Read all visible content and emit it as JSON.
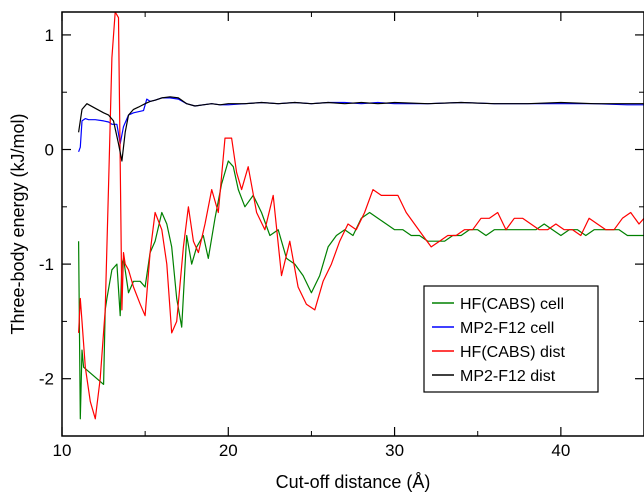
{
  "chart_data": {
    "type": "line",
    "xlabel": "Cut-off distance (Å)",
    "ylabel": "Three-body energy (kJ/mol)",
    "xlim": [
      10,
      45
    ],
    "ylim": [
      -2.5,
      1.2
    ],
    "xticks": [
      10,
      20,
      30,
      40
    ],
    "yticks": [
      1,
      0,
      -1,
      -2
    ],
    "xtick_labels": [
      "10",
      "20",
      "30",
      "40"
    ],
    "ytick_labels": [
      "1",
      "0",
      "-1",
      "-2"
    ],
    "grid": false,
    "legend_position": "bottom-right",
    "series": [
      {
        "name": "HF(CABS) cell",
        "color": "#008000",
        "x": [
          11.0,
          11.1,
          11.2,
          11.3,
          12.5,
          12.6,
          12.7,
          13.0,
          13.3,
          13.5,
          13.6,
          13.7,
          14.0,
          14.3,
          14.7,
          15.0,
          15.3,
          15.6,
          16.0,
          16.3,
          16.6,
          16.9,
          17.2,
          17.5,
          17.8,
          18.1,
          18.5,
          18.8,
          19.2,
          19.6,
          20.0,
          20.3,
          20.6,
          21.0,
          21.5,
          22.0,
          22.5,
          23.0,
          23.5,
          24.0,
          24.5,
          25.0,
          25.5,
          26.0,
          26.5,
          27.0,
          27.5,
          28.0,
          28.5,
          29.0,
          29.5,
          30.0,
          30.5,
          31.0,
          31.5,
          32.0,
          32.5,
          33.0,
          33.5,
          34.0,
          34.5,
          35.0,
          35.5,
          36.0,
          36.5,
          37.0,
          37.5,
          38.0,
          38.5,
          39.0,
          39.5,
          40.0,
          40.5,
          41.0,
          41.5,
          42.0,
          42.5,
          43.0,
          43.5,
          44.0,
          44.5,
          45.0
        ],
        "y": [
          -0.8,
          -2.35,
          -1.75,
          -1.9,
          -2.05,
          -1.4,
          -1.3,
          -1.05,
          -1.0,
          -1.45,
          -1.0,
          -0.95,
          -1.25,
          -1.15,
          -1.15,
          -1.2,
          -0.9,
          -0.8,
          -0.55,
          -0.65,
          -0.85,
          -1.3,
          -1.55,
          -0.75,
          -1.0,
          -0.85,
          -0.75,
          -0.95,
          -0.6,
          -0.3,
          -0.1,
          -0.15,
          -0.35,
          -0.5,
          -0.4,
          -0.55,
          -0.75,
          -0.7,
          -0.95,
          -1.0,
          -1.1,
          -1.25,
          -1.1,
          -0.85,
          -0.75,
          -0.7,
          -0.75,
          -0.6,
          -0.55,
          -0.6,
          -0.65,
          -0.7,
          -0.7,
          -0.75,
          -0.75,
          -0.8,
          -0.8,
          -0.8,
          -0.75,
          -0.75,
          -0.7,
          -0.7,
          -0.75,
          -0.7,
          -0.7,
          -0.7,
          -0.7,
          -0.7,
          -0.7,
          -0.65,
          -0.7,
          -0.75,
          -0.7,
          -0.7,
          -0.75,
          -0.7,
          -0.7,
          -0.7,
          -0.7,
          -0.75,
          -0.75,
          -0.75
        ]
      },
      {
        "name": "MP2-F12 cell",
        "color": "#0000ff",
        "x": [
          11.0,
          11.1,
          11.2,
          11.4,
          11.6,
          12.0,
          12.5,
          12.8,
          13.0,
          13.3,
          13.5,
          13.7,
          14.0,
          14.3,
          14.6,
          14.9,
          15.1,
          15.3,
          15.6,
          16.0,
          16.5,
          17.0,
          17.5,
          18.0,
          18.5,
          19.0,
          19.5,
          20.0,
          21.0,
          22.0,
          23.0,
          24.0,
          25.0,
          26.0,
          27.0,
          28.0,
          29.0,
          30.0,
          32.0,
          34.0,
          36.0,
          38.0,
          40.0,
          42.0,
          44.0,
          45.0
        ],
        "y": [
          -0.02,
          0.02,
          0.25,
          0.27,
          0.26,
          0.26,
          0.25,
          0.24,
          0.22,
          0.22,
          0.05,
          0.2,
          0.3,
          0.32,
          0.33,
          0.34,
          0.44,
          0.42,
          0.43,
          0.45,
          0.45,
          0.44,
          0.4,
          0.38,
          0.39,
          0.4,
          0.39,
          0.39,
          0.4,
          0.41,
          0.4,
          0.41,
          0.4,
          0.41,
          0.41,
          0.4,
          0.41,
          0.4,
          0.4,
          0.41,
          0.4,
          0.4,
          0.4,
          0.4,
          0.39,
          0.39
        ]
      },
      {
        "name": "HF(CABS) dist",
        "color": "#ff0000",
        "x": [
          11.0,
          11.1,
          11.2,
          11.4,
          11.7,
          12.0,
          12.3,
          12.6,
          12.8,
          13.0,
          13.2,
          13.4,
          13.55,
          13.6,
          13.7,
          13.8,
          14.0,
          14.3,
          14.7,
          15.0,
          15.3,
          15.6,
          16.0,
          16.3,
          16.6,
          16.9,
          17.3,
          17.6,
          17.9,
          18.2,
          18.6,
          19.0,
          19.4,
          19.8,
          20.2,
          20.5,
          20.8,
          21.2,
          21.7,
          22.2,
          22.7,
          23.2,
          23.7,
          24.2,
          24.7,
          25.2,
          25.7,
          26.2,
          26.7,
          27.2,
          27.7,
          28.2,
          28.7,
          29.2,
          29.7,
          30.2,
          30.7,
          31.2,
          31.7,
          32.2,
          32.7,
          33.2,
          33.7,
          34.2,
          34.7,
          35.2,
          35.7,
          36.2,
          36.7,
          37.2,
          37.7,
          38.2,
          38.7,
          39.2,
          39.7,
          40.2,
          40.7,
          41.2,
          41.7,
          42.2,
          42.7,
          43.2,
          43.7,
          44.2,
          44.7,
          45.0
        ],
        "y": [
          -1.6,
          -1.3,
          -1.5,
          -1.9,
          -2.2,
          -2.35,
          -2.0,
          -1.4,
          -0.3,
          0.8,
          1.2,
          1.15,
          -0.7,
          -1.4,
          -0.9,
          -1.0,
          -1.05,
          -1.2,
          -1.35,
          -1.45,
          -0.9,
          -0.55,
          -0.7,
          -1.0,
          -1.6,
          -1.5,
          -0.85,
          -0.5,
          -0.8,
          -0.9,
          -0.65,
          -0.35,
          -0.55,
          0.1,
          0.1,
          -0.2,
          -0.35,
          -0.15,
          -0.55,
          -0.7,
          -0.4,
          -1.1,
          -0.8,
          -1.2,
          -1.35,
          -1.4,
          -1.15,
          -1.0,
          -0.8,
          -0.65,
          -0.7,
          -0.55,
          -0.35,
          -0.4,
          -0.4,
          -0.4,
          -0.55,
          -0.65,
          -0.75,
          -0.85,
          -0.8,
          -0.75,
          -0.75,
          -0.7,
          -0.7,
          -0.6,
          -0.6,
          -0.55,
          -0.7,
          -0.6,
          -0.6,
          -0.65,
          -0.7,
          -0.7,
          -0.65,
          -0.7,
          -0.7,
          -0.75,
          -0.6,
          -0.65,
          -0.7,
          -0.7,
          -0.6,
          -0.55,
          -0.65,
          -0.6
        ]
      },
      {
        "name": "MP2-F12 dist",
        "color": "#000000",
        "x": [
          11.0,
          11.2,
          11.5,
          12.0,
          12.5,
          12.8,
          13.1,
          13.4,
          13.6,
          13.8,
          14.0,
          14.3,
          14.6,
          15.0,
          15.3,
          15.6,
          16.0,
          16.5,
          17.0,
          17.5,
          18.0,
          18.5,
          19.0,
          19.5,
          20.0,
          21.0,
          22.0,
          23.0,
          24.0,
          25.0,
          26.0,
          27.0,
          28.0,
          29.0,
          30.0,
          32.0,
          34.0,
          36.0,
          38.0,
          40.0,
          42.0,
          44.0,
          45.0
        ],
        "y": [
          0.15,
          0.35,
          0.4,
          0.36,
          0.32,
          0.3,
          0.25,
          0.05,
          -0.1,
          0.15,
          0.3,
          0.35,
          0.37,
          0.4,
          0.42,
          0.43,
          0.45,
          0.46,
          0.45,
          0.4,
          0.38,
          0.39,
          0.4,
          0.39,
          0.4,
          0.4,
          0.41,
          0.4,
          0.41,
          0.4,
          0.41,
          0.4,
          0.41,
          0.4,
          0.41,
          0.4,
          0.41,
          0.4,
          0.4,
          0.41,
          0.4,
          0.4,
          0.4
        ]
      }
    ]
  }
}
